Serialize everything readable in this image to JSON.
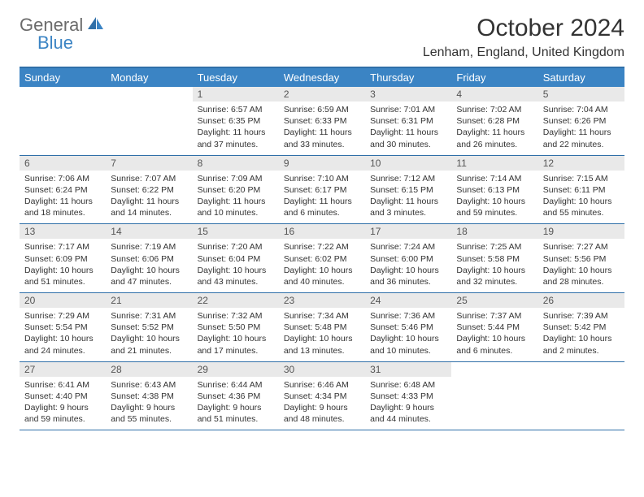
{
  "logo": {
    "word1": "General",
    "word2": "Blue"
  },
  "title": "October 2024",
  "location": "Lenham, England, United Kingdom",
  "colors": {
    "header_bg": "#3b84c4",
    "header_text": "#ffffff",
    "daynum_bg": "#e9e9e9",
    "border": "#2f6fa8",
    "body_text": "#333333",
    "logo_gray": "#6b6b6b",
    "logo_blue": "#3b84c4"
  },
  "dayHeaders": [
    "Sunday",
    "Monday",
    "Tuesday",
    "Wednesday",
    "Thursday",
    "Friday",
    "Saturday"
  ],
  "weeks": [
    [
      null,
      null,
      {
        "n": "1",
        "sunrise": "6:57 AM",
        "sunset": "6:35 PM",
        "daylight": "11 hours and 37 minutes."
      },
      {
        "n": "2",
        "sunrise": "6:59 AM",
        "sunset": "6:33 PM",
        "daylight": "11 hours and 33 minutes."
      },
      {
        "n": "3",
        "sunrise": "7:01 AM",
        "sunset": "6:31 PM",
        "daylight": "11 hours and 30 minutes."
      },
      {
        "n": "4",
        "sunrise": "7:02 AM",
        "sunset": "6:28 PM",
        "daylight": "11 hours and 26 minutes."
      },
      {
        "n": "5",
        "sunrise": "7:04 AM",
        "sunset": "6:26 PM",
        "daylight": "11 hours and 22 minutes."
      }
    ],
    [
      {
        "n": "6",
        "sunrise": "7:06 AM",
        "sunset": "6:24 PM",
        "daylight": "11 hours and 18 minutes."
      },
      {
        "n": "7",
        "sunrise": "7:07 AM",
        "sunset": "6:22 PM",
        "daylight": "11 hours and 14 minutes."
      },
      {
        "n": "8",
        "sunrise": "7:09 AM",
        "sunset": "6:20 PM",
        "daylight": "11 hours and 10 minutes."
      },
      {
        "n": "9",
        "sunrise": "7:10 AM",
        "sunset": "6:17 PM",
        "daylight": "11 hours and 6 minutes."
      },
      {
        "n": "10",
        "sunrise": "7:12 AM",
        "sunset": "6:15 PM",
        "daylight": "11 hours and 3 minutes."
      },
      {
        "n": "11",
        "sunrise": "7:14 AM",
        "sunset": "6:13 PM",
        "daylight": "10 hours and 59 minutes."
      },
      {
        "n": "12",
        "sunrise": "7:15 AM",
        "sunset": "6:11 PM",
        "daylight": "10 hours and 55 minutes."
      }
    ],
    [
      {
        "n": "13",
        "sunrise": "7:17 AM",
        "sunset": "6:09 PM",
        "daylight": "10 hours and 51 minutes."
      },
      {
        "n": "14",
        "sunrise": "7:19 AM",
        "sunset": "6:06 PM",
        "daylight": "10 hours and 47 minutes."
      },
      {
        "n": "15",
        "sunrise": "7:20 AM",
        "sunset": "6:04 PM",
        "daylight": "10 hours and 43 minutes."
      },
      {
        "n": "16",
        "sunrise": "7:22 AM",
        "sunset": "6:02 PM",
        "daylight": "10 hours and 40 minutes."
      },
      {
        "n": "17",
        "sunrise": "7:24 AM",
        "sunset": "6:00 PM",
        "daylight": "10 hours and 36 minutes."
      },
      {
        "n": "18",
        "sunrise": "7:25 AM",
        "sunset": "5:58 PM",
        "daylight": "10 hours and 32 minutes."
      },
      {
        "n": "19",
        "sunrise": "7:27 AM",
        "sunset": "5:56 PM",
        "daylight": "10 hours and 28 minutes."
      }
    ],
    [
      {
        "n": "20",
        "sunrise": "7:29 AM",
        "sunset": "5:54 PM",
        "daylight": "10 hours and 24 minutes."
      },
      {
        "n": "21",
        "sunrise": "7:31 AM",
        "sunset": "5:52 PM",
        "daylight": "10 hours and 21 minutes."
      },
      {
        "n": "22",
        "sunrise": "7:32 AM",
        "sunset": "5:50 PM",
        "daylight": "10 hours and 17 minutes."
      },
      {
        "n": "23",
        "sunrise": "7:34 AM",
        "sunset": "5:48 PM",
        "daylight": "10 hours and 13 minutes."
      },
      {
        "n": "24",
        "sunrise": "7:36 AM",
        "sunset": "5:46 PM",
        "daylight": "10 hours and 10 minutes."
      },
      {
        "n": "25",
        "sunrise": "7:37 AM",
        "sunset": "5:44 PM",
        "daylight": "10 hours and 6 minutes."
      },
      {
        "n": "26",
        "sunrise": "7:39 AM",
        "sunset": "5:42 PM",
        "daylight": "10 hours and 2 minutes."
      }
    ],
    [
      {
        "n": "27",
        "sunrise": "6:41 AM",
        "sunset": "4:40 PM",
        "daylight": "9 hours and 59 minutes."
      },
      {
        "n": "28",
        "sunrise": "6:43 AM",
        "sunset": "4:38 PM",
        "daylight": "9 hours and 55 minutes."
      },
      {
        "n": "29",
        "sunrise": "6:44 AM",
        "sunset": "4:36 PM",
        "daylight": "9 hours and 51 minutes."
      },
      {
        "n": "30",
        "sunrise": "6:46 AM",
        "sunset": "4:34 PM",
        "daylight": "9 hours and 48 minutes."
      },
      {
        "n": "31",
        "sunrise": "6:48 AM",
        "sunset": "4:33 PM",
        "daylight": "9 hours and 44 minutes."
      },
      null,
      null
    ]
  ],
  "labels": {
    "sunrise": "Sunrise:",
    "sunset": "Sunset:",
    "daylight": "Daylight:"
  }
}
